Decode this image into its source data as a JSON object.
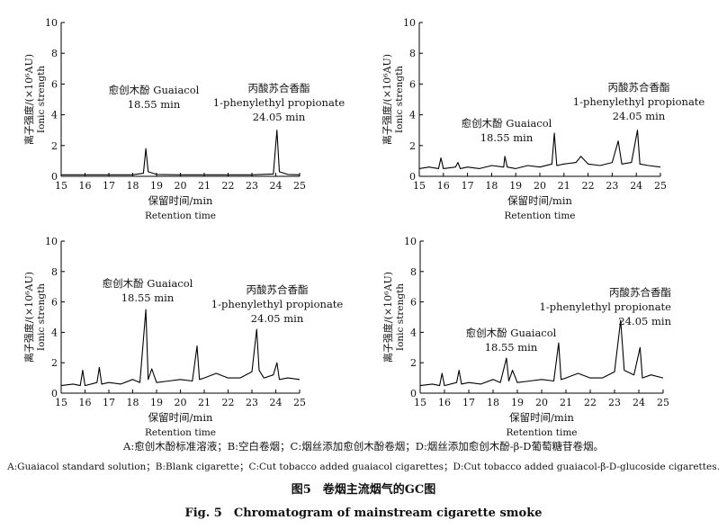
{
  "captions": {
    "note_cn": "A:愈创木酚标准溶液；B:空白卷烟；C:烟丝添加愈创木酚卷烟；D:烟丝添加愈创木酚-β-D葡萄糖苷卷烟。",
    "note_en": "A:Guaiacol standard solution；B:Blank cigarette；C:Cut tobacco added guaiacol cigarettes；D:Cut tobacco added guaiacol-β-D-glucoside cigarettes.",
    "title_cn": "图5　卷烟主流烟气的GC图",
    "title_en": "Fig. 5　Chromatogram of mainstream cigarette smoke"
  },
  "chart_data": [
    {
      "type": "line",
      "panel": "A",
      "xlabel_cn": "保留时间/min",
      "xlabel_en": "Retention time",
      "ylabel_cn": "离子强度/(×10⁶AU)",
      "ylabel_en": "Ionic strength",
      "xlim": [
        15,
        25
      ],
      "ylim": [
        0,
        10
      ],
      "xticks": [
        15,
        16,
        17,
        18,
        19,
        20,
        21,
        22,
        23,
        24,
        25
      ],
      "yticks": [
        0,
        2,
        4,
        6,
        8,
        10
      ],
      "peaks": [
        {
          "x": 18.55,
          "y": 1.8,
          "label_cn": "愈创木酚",
          "label_en": "Guaiacol",
          "label_time": "18.55 min"
        },
        {
          "x": 24.05,
          "y": 3.0,
          "label_cn": "丙酸苏合香酯",
          "label_en": "1-phenylethyl propionate",
          "label_time": "24.05 min"
        }
      ],
      "series": [
        {
          "x": [
            15,
            16,
            17,
            18,
            18.45,
            18.55,
            18.65,
            19,
            20,
            21,
            22,
            23,
            23.9,
            24.05,
            24.15,
            24.5,
            25
          ],
          "y": [
            0.1,
            0.1,
            0.1,
            0.1,
            0.2,
            1.8,
            0.3,
            0.12,
            0.1,
            0.1,
            0.1,
            0.1,
            0.15,
            3.0,
            0.3,
            0.12,
            0.1
          ]
        }
      ]
    },
    {
      "type": "line",
      "panel": "B",
      "xlabel_cn": "保留时间/min",
      "xlabel_en": "Retention time",
      "ylabel_cn": "离子强度/(×10⁶AU)",
      "ylabel_en": "Ionic strength",
      "xlim": [
        15,
        25
      ],
      "ylim": [
        0,
        10
      ],
      "xticks": [
        15,
        16,
        17,
        18,
        19,
        20,
        21,
        22,
        23,
        24,
        25
      ],
      "yticks": [
        0,
        2,
        4,
        6,
        8,
        10
      ],
      "peaks": [
        {
          "x": 18.55,
          "y": 1.3,
          "label_cn": "愈创木酚",
          "label_en": "Guaiacol",
          "label_time": "18.55 min"
        },
        {
          "x": 24.05,
          "y": 3.0,
          "label_cn": "丙酸苏合香酯",
          "label_en": "1-phenylethyl propionate",
          "label_time": "24.05 min"
        }
      ],
      "series": [
        {
          "x": [
            15,
            15.4,
            15.8,
            15.9,
            16.0,
            16.5,
            16.6,
            16.7,
            17.0,
            17.5,
            18.0,
            18.5,
            18.55,
            18.65,
            19.0,
            19.5,
            20.0,
            20.5,
            20.6,
            20.7,
            21.0,
            21.5,
            21.7,
            22.0,
            22.5,
            23.0,
            23.25,
            23.4,
            23.8,
            24.05,
            24.15,
            24.5,
            25
          ],
          "y": [
            0.5,
            0.6,
            0.5,
            1.2,
            0.5,
            0.6,
            0.9,
            0.5,
            0.6,
            0.5,
            0.7,
            0.6,
            1.3,
            0.6,
            0.5,
            0.7,
            0.6,
            0.8,
            2.8,
            0.7,
            0.8,
            0.9,
            1.3,
            0.8,
            0.7,
            0.9,
            2.3,
            0.8,
            0.9,
            3.0,
            0.8,
            0.7,
            0.6
          ]
        }
      ]
    },
    {
      "type": "line",
      "panel": "C",
      "xlabel_cn": "保留时间/min",
      "xlabel_en": "Retention time",
      "ylabel_cn": "离子强度/(×10⁶AU)",
      "ylabel_en": "Ionic strength",
      "xlim": [
        15,
        25
      ],
      "ylim": [
        0,
        10
      ],
      "xticks": [
        15,
        16,
        17,
        18,
        19,
        20,
        21,
        22,
        23,
        24,
        25
      ],
      "yticks": [
        0,
        2,
        4,
        6,
        8,
        10
      ],
      "peaks": [
        {
          "x": 18.55,
          "y": 5.5,
          "label_cn": "愈创木酚",
          "label_en": "Guaiacol",
          "label_time": "18.55 min"
        },
        {
          "x": 24.05,
          "y": 2.0,
          "label_cn": "丙酸苏合香酯",
          "label_en": "1-phenylethyl propionate",
          "label_time": "24.05 min"
        }
      ],
      "series": [
        {
          "x": [
            15,
            15.5,
            15.8,
            15.9,
            16.0,
            16.5,
            16.6,
            16.7,
            17.0,
            17.5,
            18.0,
            18.3,
            18.55,
            18.65,
            18.8,
            19.0,
            19.5,
            20.0,
            20.5,
            20.7,
            20.8,
            21.0,
            21.5,
            22.0,
            22.5,
            23.0,
            23.2,
            23.3,
            23.5,
            23.9,
            24.05,
            24.15,
            24.5,
            25
          ],
          "y": [
            0.5,
            0.6,
            0.5,
            1.5,
            0.5,
            0.7,
            1.7,
            0.6,
            0.7,
            0.6,
            0.9,
            0.7,
            5.5,
            0.9,
            1.6,
            0.7,
            0.8,
            0.9,
            0.8,
            3.1,
            0.9,
            1.0,
            1.3,
            1.0,
            1.0,
            1.4,
            4.2,
            1.5,
            1.0,
            1.2,
            2.0,
            0.9,
            1.0,
            0.9
          ]
        }
      ]
    },
    {
      "type": "line",
      "panel": "D",
      "xlabel_cn": "保留时间/min",
      "xlabel_en": "Retention time",
      "ylabel_cn": "离子强度/(×10⁶AU)",
      "ylabel_en": "Ionic strength",
      "xlim": [
        15,
        25
      ],
      "ylim": [
        0,
        10
      ],
      "xticks": [
        15,
        16,
        17,
        18,
        19,
        20,
        21,
        22,
        23,
        24,
        25
      ],
      "yticks": [
        0,
        2,
        4,
        6,
        8,
        10
      ],
      "peaks": [
        {
          "x": 18.55,
          "y": 2.3,
          "label_cn": "愈创木酚",
          "label_en": "Guaiacol",
          "label_time": "18.55 min"
        },
        {
          "x": 24.05,
          "y": 3.0,
          "label_cn": "丙酸苏合香酯",
          "label_en": "1-phenylethyl propionate",
          "label_time": "24.05 min"
        }
      ],
      "series": [
        {
          "x": [
            15,
            15.5,
            15.8,
            15.9,
            16.0,
            16.5,
            16.6,
            16.7,
            17.0,
            17.5,
            18.0,
            18.3,
            18.55,
            18.65,
            18.8,
            19.0,
            19.5,
            20.0,
            20.5,
            20.7,
            20.8,
            21.0,
            21.5,
            22.0,
            22.5,
            23.0,
            23.25,
            23.4,
            23.8,
            24.05,
            24.15,
            24.5,
            25
          ],
          "y": [
            0.5,
            0.6,
            0.5,
            1.3,
            0.5,
            0.7,
            1.5,
            0.6,
            0.7,
            0.6,
            0.9,
            0.7,
            2.3,
            0.8,
            1.5,
            0.7,
            0.8,
            0.9,
            0.8,
            3.3,
            0.9,
            1.0,
            1.3,
            1.0,
            1.0,
            1.4,
            4.8,
            1.5,
            1.2,
            3.0,
            1.0,
            1.2,
            1.0
          ]
        }
      ]
    }
  ]
}
